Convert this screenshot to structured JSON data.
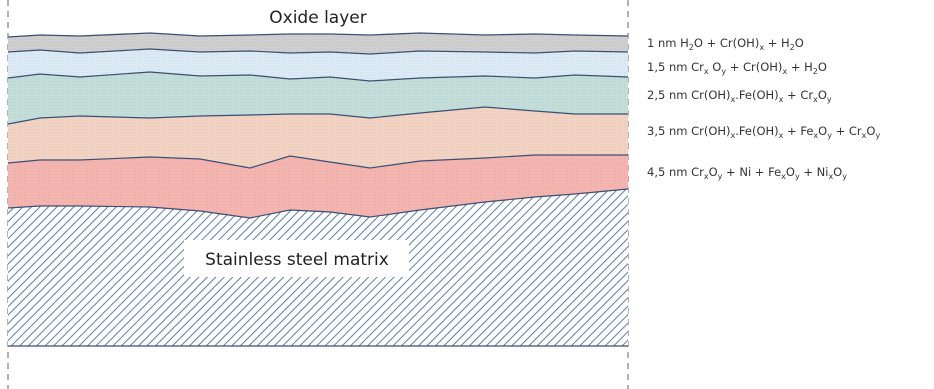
{
  "title": "Oxide layer",
  "matrix_label": "Stainless steel matrix",
  "colors": {
    "layer_1": "#cfcfcf",
    "layer_2": "#dceaf6",
    "layer_3": "#c3ddd9",
    "layer_4": "#f2d2c3",
    "layer_5": "#f4b5b1",
    "matrix_hatch": "#5b7ea5",
    "boundary": "#3b4f74"
  },
  "layers": [
    {
      "id": "layer-1",
      "thickness": "1 nm",
      "parts": [
        {
          "t": "H"
        },
        {
          "t": "2",
          "sub": true
        },
        {
          "t": "O + Cr(OH)"
        },
        {
          "t": "x",
          "sub": true
        },
        {
          "t": " + H"
        },
        {
          "t": "2",
          "sub": true
        },
        {
          "t": "O"
        }
      ]
    },
    {
      "id": "layer-2",
      "thickness": "1,5 nm",
      "parts": [
        {
          "t": "Cr"
        },
        {
          "t": "x",
          "sub": true
        },
        {
          "t": " O"
        },
        {
          "t": "y",
          "sub": true
        },
        {
          "t": " + Cr(OH)"
        },
        {
          "t": "x",
          "sub": true
        },
        {
          "t": " + H"
        },
        {
          "t": "2",
          "sub": true
        },
        {
          "t": "O"
        }
      ]
    },
    {
      "id": "layer-3",
      "thickness": "2,5 nm",
      "parts": [
        {
          "t": "Cr(OH)"
        },
        {
          "t": "x",
          "sub": true
        },
        {
          "t": ".Fe(OH)"
        },
        {
          "t": "x",
          "sub": true
        },
        {
          "t": " + Cr"
        },
        {
          "t": "x",
          "sub": true
        },
        {
          "t": "O"
        },
        {
          "t": "y",
          "sub": true
        }
      ]
    },
    {
      "id": "layer-4",
      "thickness": "3,5 nm",
      "parts": [
        {
          "t": "Cr(OH)"
        },
        {
          "t": "x",
          "sub": true
        },
        {
          "t": ".Fe(OH)"
        },
        {
          "t": "x",
          "sub": true
        },
        {
          "t": " + Fe"
        },
        {
          "t": "x",
          "sub": true
        },
        {
          "t": "O"
        },
        {
          "t": "y",
          "sub": true
        },
        {
          "t": " + Cr"
        },
        {
          "t": "x",
          "sub": true
        },
        {
          "t": "O"
        },
        {
          "t": "y",
          "sub": true
        }
      ]
    },
    {
      "id": "layer-5",
      "thickness": "4,5 nm",
      "parts": [
        {
          "t": "Cr"
        },
        {
          "t": "x",
          "sub": true
        },
        {
          "t": "O"
        },
        {
          "t": "y",
          "sub": true
        },
        {
          "t": " + Ni + Fe"
        },
        {
          "t": "x",
          "sub": true
        },
        {
          "t": "O"
        },
        {
          "t": "y",
          "sub": true
        },
        {
          "t": " + Ni"
        },
        {
          "t": "x",
          "sub": true
        },
        {
          "t": "O"
        },
        {
          "t": "y",
          "sub": true
        }
      ]
    }
  ]
}
